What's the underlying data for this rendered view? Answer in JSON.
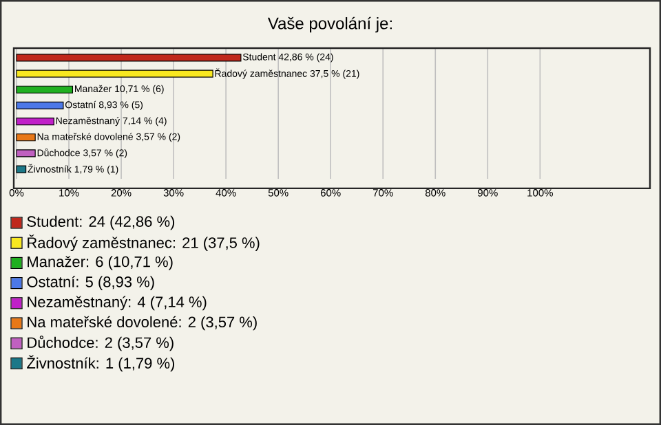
{
  "chart_data": {
    "type": "bar",
    "orientation": "horizontal",
    "title": "Vaše povolání je:",
    "categories": [
      null,
      null,
      null,
      null,
      null,
      null,
      null,
      null
    ],
    "values": [
      42.86,
      37.5,
      10.71,
      8.93,
      7.14,
      3.57,
      3.57,
      1.79
    ],
    "value_labels": [
      "Student 42,86 % (24)",
      "Řadový zaměstnanec 37,5 % (21)",
      "Manažer 10,71 % (6)",
      "Ostatní 8,93 % (5)",
      "Nezaměstnaný 7,14 % (4)",
      "Na mateřské dovolené 3,57 % (2)",
      "Důchodce 3,57 % (2)",
      "Živnostník 1,79 % (1)"
    ],
    "colors": [
      "#c0281c",
      "#f8e820",
      "#20b020",
      "#4c78e8",
      "#c020c8",
      "#e87818",
      "#c060c0",
      "#1c7888"
    ],
    "xlim": [
      0,
      121
    ],
    "xticks": [
      {
        "value": 0,
        "label": "0%"
      },
      {
        "value": 10,
        "label": "10%"
      },
      {
        "value": 20,
        "label": "20%"
      },
      {
        "value": 30,
        "label": "30%"
      },
      {
        "value": 40,
        "label": "40%"
      },
      {
        "value": 50,
        "label": "50%"
      },
      {
        "value": 60,
        "label": "60%"
      },
      {
        "value": 70,
        "label": "70%"
      },
      {
        "value": 80,
        "label": "80%"
      },
      {
        "value": 90,
        "label": "90%"
      },
      {
        "value": 100,
        "label": "100%"
      }
    ],
    "grid": "x",
    "tick_labels": "x",
    "annotations": [
      "Student: 24 (42,86 %)",
      "Řadový zaměstnanec: 21 (37,5 %)",
      "Manažer: 6 (10,71 %)",
      "Ostatní: 5 (8,93 %)",
      "Nezaměstnaný: 4 (7,14 %)",
      "Na mateřské dovolené: 2 (3,57 %)",
      "Důchodce: 2 (3,57 %)",
      "Živnostník: 1 (1,79 %)"
    ]
  }
}
